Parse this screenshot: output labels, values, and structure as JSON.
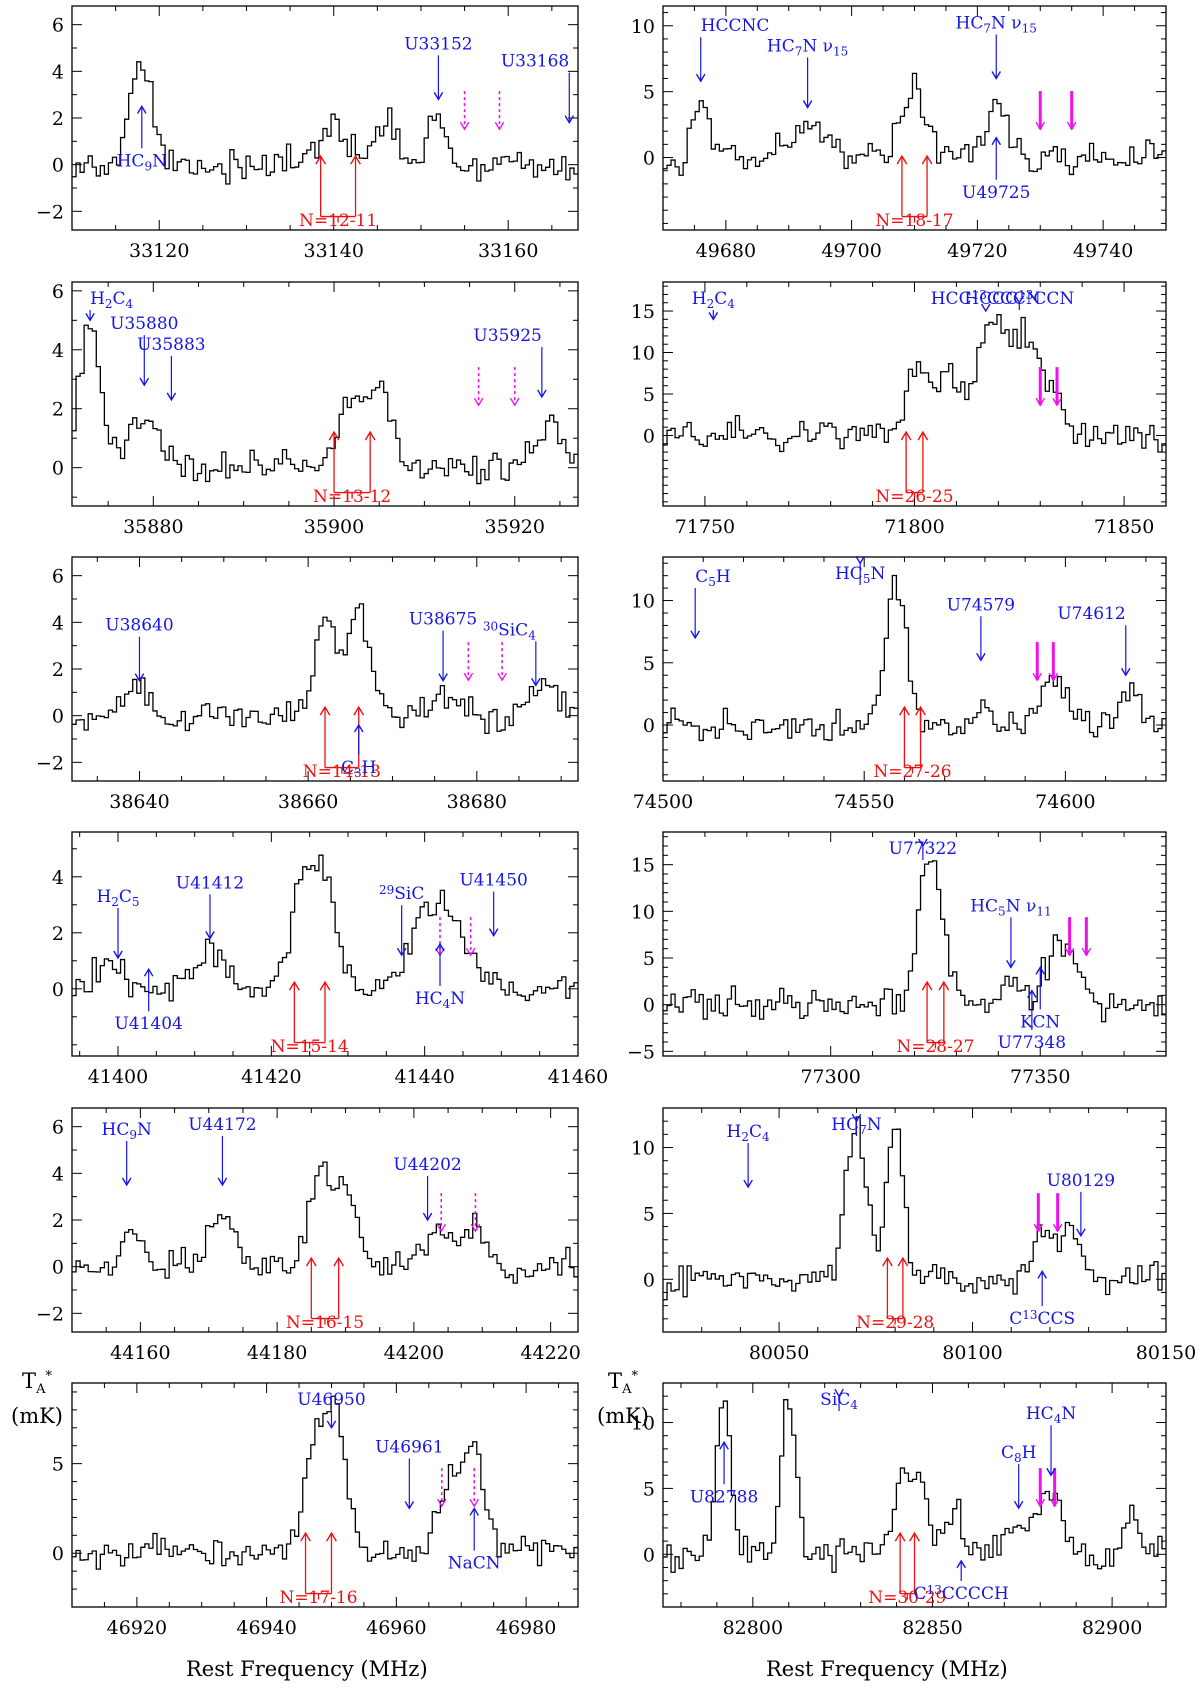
{
  "figure": {
    "xlabel": "Rest Frequency (MHz)",
    "ylabel": "(mK)",
    "ylabel_symbol": "T",
    "ylabel_sub": "A",
    "ylabel_sup": "*",
    "colors": {
      "trace": "#000000",
      "species": "#1515e6",
      "series": "#ee1111",
      "predicted": "#ee11ee"
    }
  },
  "chart_data": [
    {
      "type": "line",
      "id": "p1",
      "xlim": [
        33110,
        33168
      ],
      "ylim": [
        -2.8,
        6.8
      ],
      "xticks": [
        33120,
        33140,
        33160
      ],
      "yticks": [
        -2,
        0,
        2,
        4,
        6
      ],
      "peaks": [
        [
          33118,
          4.3,
          1.2
        ],
        [
          33140,
          1.5,
          1.8
        ],
        [
          33146,
          1.8,
          1.2
        ],
        [
          33152,
          2.3,
          0.9
        ]
      ],
      "series_label": "N=12-11",
      "series_arrows": [
        33138.5,
        33142.5
      ],
      "species": [
        {
          "label": "U33152",
          "x": 33152,
          "y": 2.8
        },
        {
          "label": "U33168",
          "x": 33167,
          "y": 1.8
        },
        {
          "label": "HC9N",
          "x": 33118,
          "y": 2.5,
          "below": true
        }
      ],
      "predicted": [
        33155,
        33159
      ]
    },
    {
      "type": "line",
      "id": "p2",
      "xlim": [
        49670,
        49750
      ],
      "ylim": [
        -5.5,
        11.5
      ],
      "xticks": [
        49680,
        49700,
        49720,
        49740
      ],
      "yticks": [
        0,
        5,
        10
      ],
      "peaks": [
        [
          49676,
          4.5,
          1.3
        ],
        [
          49693,
          2.3,
          3
        ],
        [
          49710,
          5.5,
          2
        ],
        [
          49723,
          4.5,
          1.5
        ]
      ],
      "series_label": "N=18-17",
      "series_arrows": [
        49708,
        49712
      ],
      "species": [
        {
          "label": "HCCNC",
          "x": 49676,
          "y": 5.8
        },
        {
          "label": "HC7N ν15",
          "x": 49693,
          "y": 3.8
        },
        {
          "label": "HC7N ν15",
          "x": 49723,
          "y": 6
        },
        {
          "label": "U49725",
          "x": 49723,
          "y": 1.5,
          "below": true
        }
      ],
      "predicted": [
        49730,
        49735
      ]
    },
    {
      "type": "line",
      "id": "p3",
      "xlim": [
        35871,
        35927
      ],
      "ylim": [
        -1.3,
        6.3
      ],
      "xticks": [
        35880,
        35900,
        35920
      ],
      "yticks": [
        0,
        2,
        4,
        6
      ],
      "peaks": [
        [
          35873,
          4.8,
          1.2
        ],
        [
          35879,
          1.6,
          1.8
        ],
        [
          35902,
          2.2,
          1.5
        ],
        [
          35905,
          2.3,
          1.2
        ],
        [
          35924,
          1.3,
          1.5
        ]
      ],
      "series_label": "N=13-12",
      "series_arrows": [
        35900,
        35904
      ],
      "species": [
        {
          "label": "H2C4",
          "x": 35873,
          "y": 5
        },
        {
          "label": "U35880",
          "x": 35879,
          "y": 2.8
        },
        {
          "label": "U35883",
          "x": 35882,
          "y": 2.3
        },
        {
          "label": "U35925",
          "x": 35923,
          "y": 2.4
        }
      ],
      "predicted": [
        35916,
        35920
      ]
    },
    {
      "type": "line",
      "id": "p4",
      "xlim": [
        71740,
        71860
      ],
      "ylim": [
        -8.5,
        18.5
      ],
      "xticks": [
        71750,
        71800,
        71850
      ],
      "yticks": [
        0,
        5,
        10,
        15
      ],
      "peaks": [
        [
          71800,
          8,
          2.2
        ],
        [
          71808,
          8,
          3
        ],
        [
          71818,
          12,
          3.2
        ],
        [
          71826,
          12,
          3.8
        ],
        [
          71833,
          4,
          3
        ]
      ],
      "series_label": "N=26-25",
      "series_arrows": [
        71798,
        71802
      ],
      "species": [
        {
          "label": "H2C4",
          "x": 71752,
          "y": 14
        },
        {
          "label": "HCC13CCCN",
          "x": 71817,
          "y": 15
        },
        {
          "label": "HCCC13CCN",
          "x": 71825,
          "y": 16
        }
      ],
      "predicted": [
        71830,
        71834
      ]
    },
    {
      "type": "line",
      "id": "p5",
      "xlim": [
        38632,
        38692
      ],
      "ylim": [
        -2.8,
        6.8
      ],
      "xticks": [
        38640,
        38660,
        38680
      ],
      "yticks": [
        -2,
        0,
        2,
        4,
        6
      ],
      "peaks": [
        [
          38640,
          1,
          1.5
        ],
        [
          38662,
          4.3,
          1.2
        ],
        [
          38666,
          4.3,
          1.4
        ],
        [
          38676,
          0.9,
          1.2
        ],
        [
          38688,
          1.1,
          1.5
        ]
      ],
      "series_label": "N=14-13",
      "series_arrows": [
        38662,
        38666
      ],
      "species": [
        {
          "label": "U38640",
          "x": 38640,
          "y": 1.5
        },
        {
          "label": "U38675",
          "x": 38676,
          "y": 1.5
        },
        {
          "label": "30SiC4",
          "x": 38687,
          "y": 1.3
        },
        {
          "label": "C3H",
          "x": 38666,
          "y": -0.4,
          "below": true
        }
      ],
      "predicted": [
        38679,
        38683
      ]
    },
    {
      "type": "line",
      "id": "p6",
      "xlim": [
        74500,
        74625
      ],
      "ylim": [
        -4.5,
        13.5
      ],
      "xticks": [
        74500,
        74550,
        74600
      ],
      "yticks": [
        0,
        5,
        10
      ],
      "peaks": [
        [
          74558,
          12,
          2.5
        ],
        [
          74579,
          1.2,
          2
        ],
        [
          74597,
          4.5,
          3
        ],
        [
          74616,
          2.5,
          2.5
        ]
      ],
      "series_label": "N=27-26",
      "series_arrows": [
        74560,
        74564
      ],
      "species": [
        {
          "label": "HC5N",
          "x": 74549,
          "y": 13
        },
        {
          "label": "C5H",
          "x": 74508,
          "y": 7
        },
        {
          "label": "U74579",
          "x": 74579,
          "y": 5.2
        },
        {
          "label": "U74612",
          "x": 74615,
          "y": 4
        }
      ],
      "predicted": [
        74593,
        74597
      ]
    },
    {
      "type": "line",
      "id": "p7",
      "xlim": [
        41394,
        41460
      ],
      "ylim": [
        -2.4,
        5.6
      ],
      "xticks": [
        41400,
        41420,
        41440,
        41460
      ],
      "yticks": [
        0,
        2,
        4
      ],
      "peaks": [
        [
          41399,
          1.1,
          1.5
        ],
        [
          41412,
          1.6,
          1.8
        ],
        [
          41424,
          3.8,
          1.4
        ],
        [
          41427,
          3.8,
          1.5
        ],
        [
          41440,
          2.4,
          2
        ],
        [
          41444,
          2.3,
          2
        ]
      ],
      "series_label": "N=15-14",
      "series_arrows": [
        41423,
        41427
      ],
      "species": [
        {
          "label": "U41412",
          "x": 41412,
          "y": 1.8
        },
        {
          "label": "29SiC",
          "x": 41437,
          "y": 1.2
        },
        {
          "label": "U41450",
          "x": 41449,
          "y": 1.9
        },
        {
          "label": "H2C5",
          "x": 41400,
          "y": 1.1
        },
        {
          "label": "U41404",
          "x": 41404,
          "y": 0.7,
          "below": true
        },
        {
          "label": "HC4N",
          "x": 41442,
          "y": 1.6,
          "below": true
        }
      ],
      "predicted": [
        41442,
        41446
      ]
    },
    {
      "type": "line",
      "id": "p8",
      "xlim": [
        77260,
        77380
      ],
      "ylim": [
        -5.5,
        18.5
      ],
      "xticks": [
        77300,
        77350
      ],
      "yticks": [
        -5,
        0,
        5,
        10,
        15
      ],
      "peaks": [
        [
          77324,
          16,
          2.8
        ],
        [
          77343,
          3,
          2.5
        ],
        [
          77355,
          6,
          3.5
        ]
      ],
      "series_label": "N=28-27",
      "series_arrows": [
        77323,
        77327
      ],
      "species": [
        {
          "label": "U77322",
          "x": 77322,
          "y": 17
        },
        {
          "label": "HC5N ν11",
          "x": 77343,
          "y": 4
        },
        {
          "label": "KCN",
          "x": 77350,
          "y": 4,
          "below": true
        },
        {
          "label": "U77348",
          "x": 77348,
          "y": 1.5,
          "below": true
        }
      ],
      "predicted": [
        77357,
        77361
      ]
    },
    {
      "type": "line",
      "id": "p9",
      "xlim": [
        44150,
        44224
      ],
      "ylim": [
        -2.8,
        6.8
      ],
      "xticks": [
        44160,
        44180,
        44200,
        44220
      ],
      "yticks": [
        -2,
        0,
        2,
        4,
        6
      ],
      "peaks": [
        [
          44159,
          1.8,
          1.2
        ],
        [
          44172,
          2.3,
          1.8
        ],
        [
          44186,
          3.7,
          1.6
        ],
        [
          44190,
          3.7,
          1.6
        ],
        [
          44204,
          1.5,
          2
        ],
        [
          44209,
          1.7,
          1.5
        ]
      ],
      "series_label": "N=16-15",
      "series_arrows": [
        44185,
        44189
      ],
      "species": [
        {
          "label": "HC9N",
          "x": 44158,
          "y": 3.5
        },
        {
          "label": "U44172",
          "x": 44172,
          "y": 3.5
        },
        {
          "label": "U44202",
          "x": 44202,
          "y": 2
        }
      ],
      "predicted": [
        44204,
        44209
      ]
    },
    {
      "type": "line",
      "id": "p10",
      "xlim": [
        80020,
        80150
      ],
      "ylim": [
        -4,
        13
      ],
      "xticks": [
        80050,
        80100,
        80150
      ],
      "yticks": [
        0,
        5,
        10
      ],
      "peaks": [
        [
          80070,
          12,
          2.5
        ],
        [
          80080,
          12,
          2.2
        ],
        [
          80118,
          3.5,
          2.5
        ],
        [
          80125,
          3.5,
          3
        ]
      ],
      "series_label": "N=29-28",
      "series_arrows": [
        80078,
        80082
      ],
      "species": [
        {
          "label": "H2C4",
          "x": 80042,
          "y": 7
        },
        {
          "label": "HC7N",
          "x": 80070,
          "y": 12
        },
        {
          "label": "U80129",
          "x": 80128,
          "y": 3.3
        },
        {
          "label": "C13CCS",
          "x": 80118,
          "y": 0.6,
          "below": true
        }
      ],
      "predicted": [
        80117,
        80122
      ]
    },
    {
      "type": "line",
      "id": "p11",
      "xlim": [
        46910,
        46988
      ],
      "ylim": [
        -3,
        9.5
      ],
      "xticks": [
        46920,
        46940,
        46960,
        46980
      ],
      "yticks": [
        0,
        5
      ],
      "peaks": [
        [
          46948,
          6.5,
          2.2
        ],
        [
          46951,
          5,
          1.5
        ],
        [
          46968,
          4,
          1.6
        ],
        [
          46972,
          6,
          1.5
        ]
      ],
      "series_label": "N=17-16",
      "series_arrows": [
        46946,
        46950
      ],
      "species": [
        {
          "label": "U46950",
          "x": 46950,
          "y": 7
        },
        {
          "label": "U46961",
          "x": 46962,
          "y": 2.5
        },
        {
          "label": "NaCN",
          "x": 46972,
          "y": 2.5,
          "below": true
        }
      ],
      "predicted": [
        46967,
        46972
      ]
    },
    {
      "type": "line",
      "id": "p12",
      "xlim": [
        82775,
        82915
      ],
      "ylim": [
        -4,
        13
      ],
      "xticks": [
        82800,
        82850,
        82900
      ],
      "yticks": [
        0,
        5,
        10
      ],
      "peaks": [
        [
          82792,
          12,
          2
        ],
        [
          82810,
          12,
          2
        ],
        [
          82842,
          6.5,
          2.5
        ],
        [
          82847,
          5.5,
          1.5
        ],
        [
          82856,
          3,
          3
        ],
        [
          82872,
          2,
          3
        ],
        [
          82882,
          5,
          3.5
        ],
        [
          82905,
          2.8,
          2
        ]
      ],
      "series_label": "N=30-29",
      "series_arrows": [
        82841,
        82845
      ],
      "species": [
        {
          "label": "SiC4",
          "x": 82824,
          "y": 12
        },
        {
          "label": "HC4N",
          "x": 82883,
          "y": 6
        },
        {
          "label": "C8H",
          "x": 82874,
          "y": 3.5
        },
        {
          "label": "U82788",
          "x": 82792,
          "y": 8.5,
          "below": true
        },
        {
          "label": "C13CCCCH",
          "x": 82858,
          "y": -0.5,
          "below": true
        }
      ],
      "predicted": [
        82880,
        82884
      ]
    }
  ]
}
